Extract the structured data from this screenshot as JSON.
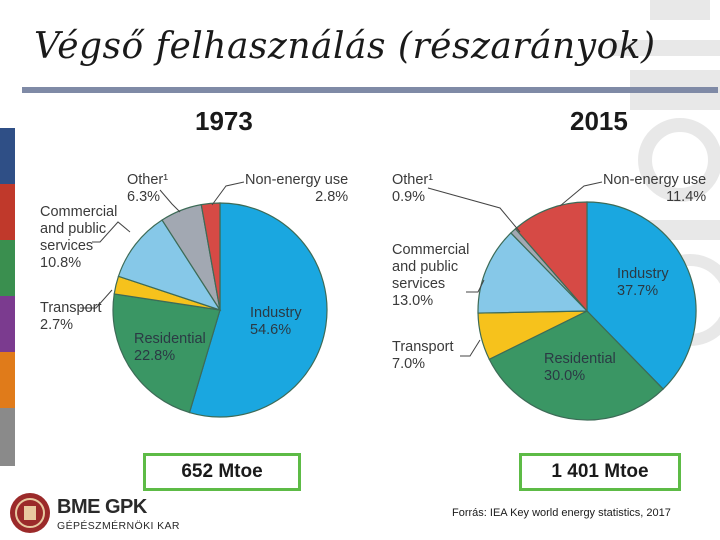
{
  "page": {
    "title": "Végső felhasználás (részarányok)",
    "source": "Forrás: IEA Key world energy statistics, 2017",
    "logo_text": "BME GPK",
    "faculty": "GÉPÉSZMÉRNÖKI KAR"
  },
  "chart_data": [
    {
      "type": "pie",
      "title": "1973",
      "total_label": "652 Mtoe",
      "slices": [
        {
          "name": "Industry",
          "value": 54.6,
          "label": "Industry\n54.6%",
          "color": "#1aa7e0"
        },
        {
          "name": "Residential",
          "value": 22.8,
          "label": "Residential\n22.8%",
          "color": "#3a9664"
        },
        {
          "name": "Transport",
          "value": 2.7,
          "label": "Transport\n2.7%",
          "color": "#f6c21c"
        },
        {
          "name": "Commercial and public services",
          "value": 10.8,
          "label": "Commercial\nand public\nservices\n10.8%",
          "color": "#86c8e8"
        },
        {
          "name": "Other¹",
          "value": 6.3,
          "label": "Other¹\n6.3%",
          "color": "#a2a8b2"
        },
        {
          "name": "Non-energy use",
          "value": 2.8,
          "label": "Non-energy use\n2.8%",
          "color": "#d64a45"
        }
      ]
    },
    {
      "type": "pie",
      "title": "2015",
      "total_label": "1 401 Mtoe",
      "slices": [
        {
          "name": "Industry",
          "value": 37.7,
          "label": "Industry\n37.7%",
          "color": "#1aa7e0"
        },
        {
          "name": "Residential",
          "value": 30.0,
          "label": "Residential\n30.0%",
          "color": "#3a9664"
        },
        {
          "name": "Transport",
          "value": 7.0,
          "label": "Transport\n7.0%",
          "color": "#f6c21c"
        },
        {
          "name": "Commercial and public services",
          "value": 13.0,
          "label": "Commercial\nand public\nservices\n13.0%",
          "color": "#86c8e8"
        },
        {
          "name": "Other¹",
          "value": 0.9,
          "label": "Other¹\n0.9%",
          "color": "#a2a8b2"
        },
        {
          "name": "Non-energy use",
          "value": 11.4,
          "label": "Non-energy use\n11.4%",
          "color": "#d64a45"
        }
      ]
    }
  ],
  "colors": {
    "accent_rule": "#7f8aa6",
    "total_box_border": "#5dbb46",
    "side_stripes": [
      "#2f4f86",
      "#c0392b",
      "#3a8f4f",
      "#7b3b8f",
      "#e07b1a",
      "#8a8a8a"
    ]
  }
}
